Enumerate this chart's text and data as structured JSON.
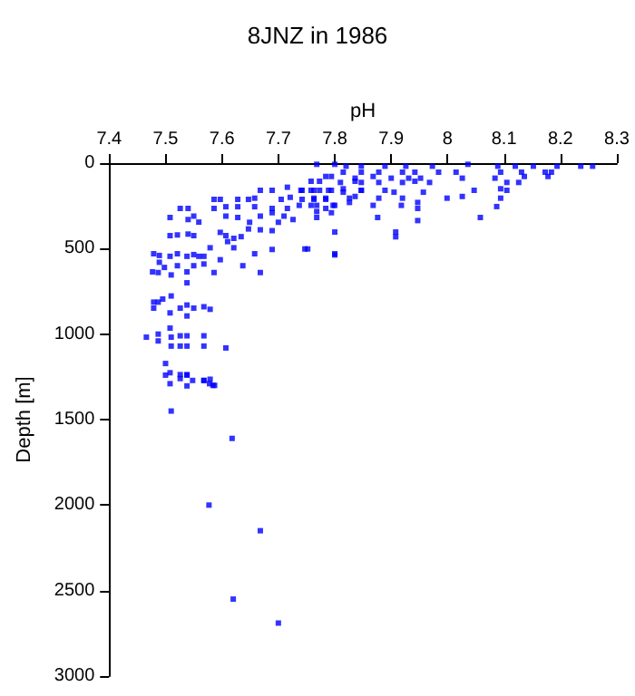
{
  "chart_data": {
    "type": "scatter",
    "title": "8JNZ in 1986",
    "xlabel": "pH",
    "ylabel": "Depth [m]",
    "xlim": [
      7.4,
      8.3
    ],
    "xticks": [
      7.4,
      7.5,
      7.6,
      7.7,
      7.8,
      7.9,
      8,
      8.1,
      8.2,
      8.3
    ],
    "ylim": [
      3000,
      0
    ],
    "yticks": [
      0,
      500,
      1000,
      1500,
      2000,
      2500,
      3000
    ],
    "grid": false,
    "marker": "square",
    "series": [
      {
        "color": "#0000ff",
        "x": [
          7.618,
          7.577,
          7.668,
          7.62,
          7.7,
          7.51,
          7.5,
          7.508,
          7.526,
          7.538,
          7.568,
          7.579,
          7.584,
          7.5,
          7.508,
          7.526,
          7.538,
          7.538,
          7.548,
          7.568,
          7.578,
          7.587,
          7.466,
          7.487,
          7.487,
          7.51,
          7.526,
          7.538,
          7.568,
          7.607,
          7.51,
          7.526,
          7.538,
          7.568,
          7.508,
          7.479,
          7.487,
          7.495,
          7.51,
          7.526,
          7.538,
          7.55,
          7.568,
          7.579,
          7.479,
          7.508,
          7.538,
          7.538,
          7.477,
          7.487,
          7.498,
          7.51,
          7.521,
          7.538,
          7.55,
          7.568,
          7.586,
          7.597,
          7.637,
          7.668,
          7.489,
          7.479,
          7.489,
          7.508,
          7.521,
          7.538,
          7.55,
          7.559,
          7.568,
          7.579,
          7.61,
          7.621,
          7.658,
          7.689,
          7.747,
          7.8,
          7.508,
          7.521,
          7.54,
          7.55,
          7.597,
          7.607,
          7.621,
          7.634,
          7.647,
          7.668,
          7.689,
          7.508,
          7.54,
          7.55,
          7.559,
          7.607,
          7.628,
          7.649,
          7.668,
          7.689,
          7.71,
          7.726,
          7.7,
          7.526,
          7.54,
          7.586,
          7.607,
          7.628,
          7.658,
          7.689,
          7.716,
          7.737,
          7.758,
          7.784,
          7.797,
          7.586,
          7.597,
          7.628,
          7.647,
          7.658,
          7.705,
          7.721,
          7.742,
          7.763,
          7.784,
          7.826,
          7.668,
          7.689,
          7.716,
          7.74,
          7.758,
          7.773,
          7.794,
          7.815,
          7.847,
          7.758,
          7.773,
          7.784,
          7.794,
          7.815,
          7.836,
          7.768,
          7.8,
          7.82,
          7.847,
          7.889,
          7.926,
          7.973,
          8.036,
          8.089,
          8.12,
          8.152,
          8.194,
          8.236,
          8.257,
          7.847,
          7.878,
          7.92,
          7.942,
          7.984,
          8.015,
          8.094,
          8.131,
          8.173,
          8.184,
          7.836,
          7.868,
          7.9,
          7.931,
          7.952,
          8.026,
          8.084,
          8.136,
          8.178,
          7.81,
          7.847,
          7.878,
          7.92,
          7.942,
          7.968,
          8.105,
          8.126,
          7.742,
          7.763,
          7.789,
          7.815,
          7.847,
          7.889,
          7.905,
          7.957,
          8.047,
          8.094,
          8.105,
          7.763,
          7.784,
          7.836,
          7.878,
          7.92,
          7.947,
          7.999,
          8.026,
          8.094,
          7.768,
          7.8,
          7.826,
          7.868,
          7.918,
          8.087,
          7.768,
          7.794,
          7.947,
          7.768,
          7.876,
          8.058,
          7.947,
          7.8,
          7.908,
          7.908,
          7.752,
          7.8
        ],
        "values": [
          1610,
          2000,
          2150,
          2550,
          2690,
          1450,
          1172,
          1226,
          1260,
          1240,
          1271,
          1264,
          1300,
          1240,
          1290,
          1237,
          1237,
          1303,
          1271,
          1271,
          1290,
          1300,
          1018,
          1000,
          1040,
          1018,
          1010,
          1010,
          1010,
          1081,
          1070,
          1070,
          1070,
          1070,
          965,
          848,
          813,
          795,
          777,
          848,
          830,
          848,
          840,
          855,
          813,
          876,
          894,
          700,
          636,
          640,
          610,
          654,
          600,
          636,
          600,
          590,
          640,
          565,
          600,
          640,
          580,
          530,
          540,
          545,
          530,
          545,
          535,
          545,
          545,
          495,
          459,
          495,
          530,
          505,
          502,
          530,
          424,
          420,
          415,
          424,
          405,
          424,
          440,
          430,
          385,
          390,
          395,
          318,
          330,
          310,
          345,
          310,
          318,
          346,
          310,
          290,
          310,
          330,
          346,
          265,
          265,
          265,
          255,
          255,
          255,
          265,
          265,
          247,
          247,
          265,
          247,
          212,
          212,
          212,
          212,
          205,
          212,
          200,
          212,
          212,
          212,
          205,
          159,
          159,
          141,
          159,
          159,
          159,
          159,
          150,
          159,
          106,
          106,
          78,
          78,
          53,
          106,
          7,
          7,
          18,
          18,
          18,
          18,
          18,
          7,
          18,
          18,
          18,
          18,
          18,
          18,
          53,
          53,
          53,
          53,
          53,
          53,
          53,
          53,
          53,
          53,
          88,
          78,
          88,
          88,
          88,
          88,
          88,
          78,
          78,
          113,
          113,
          113,
          113,
          106,
          113,
          113,
          113,
          159,
          159,
          159,
          170,
          159,
          159,
          170,
          170,
          159,
          150,
          159,
          205,
          205,
          195,
          205,
          205,
          230,
          205,
          195,
          205,
          247,
          247,
          230,
          247,
          247,
          254,
          283,
          290,
          265,
          318,
          318,
          318,
          336,
          403,
          403,
          431,
          502,
          537
        ]
      }
    ]
  }
}
